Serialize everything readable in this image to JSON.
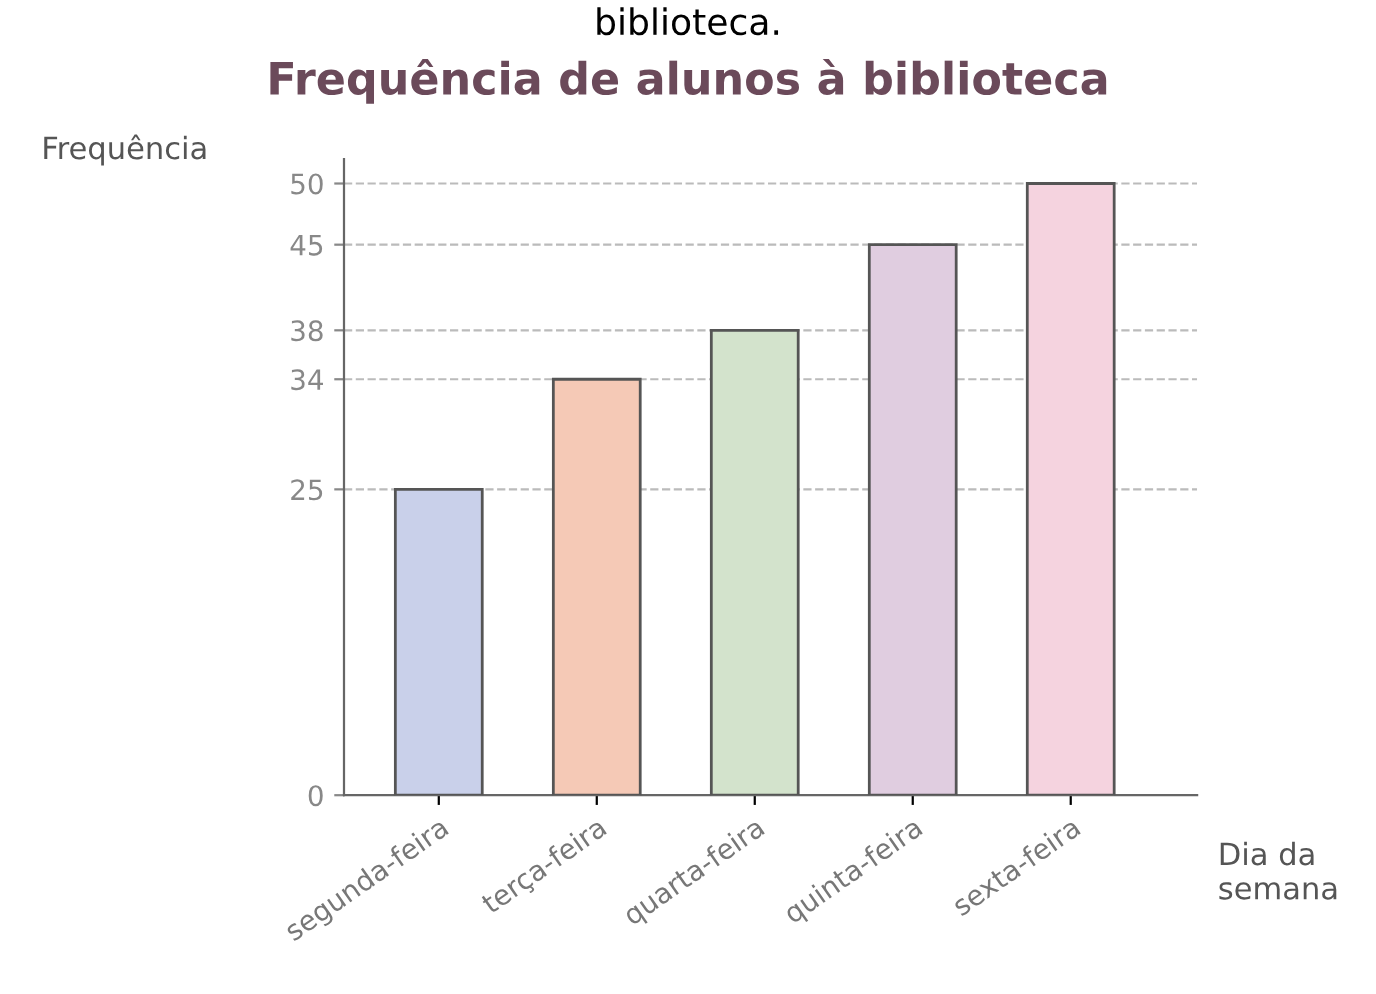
{
  "chart_data": {
    "type": "bar",
    "title": "Frequência de alunos à biblioteca",
    "annotations": [
      "biblioteca."
    ],
    "xlabel": "Dia da semana",
    "ylabel": "Frequência",
    "categories": [
      "segunda-feira",
      "terça-feira",
      "quarta-feira",
      "quinta-feira",
      "sexta-feira"
    ],
    "values": [
      25,
      34,
      38,
      45,
      50
    ],
    "colors": [
      "#c9d0ea",
      "#f5c9b6",
      "#d3e3cc",
      "#e0cde0",
      "#f5d3df"
    ],
    "ylim": [
      0,
      52
    ],
    "yticks": [
      0,
      25,
      34,
      38,
      45,
      50
    ],
    "grid": "y"
  }
}
